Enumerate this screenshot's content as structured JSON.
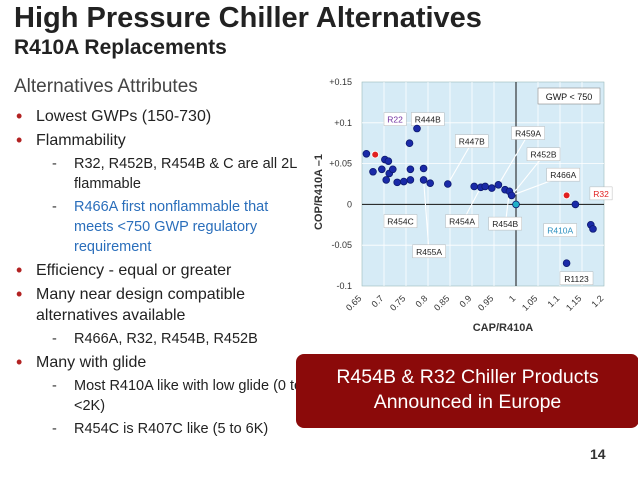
{
  "title": "High Pressure Chiller Alternatives",
  "subtitle": "R410A Replacements",
  "section_heading": "Alternatives Attributes",
  "bullets": [
    {
      "level": 1,
      "text": "Lowest GWPs (150-730)"
    },
    {
      "level": 1,
      "text": "Flammability"
    },
    {
      "level": 2,
      "text": "R32, R452B, R454B & C are all 2L flammable"
    },
    {
      "level": 2,
      "text": "R466A first nonflammable that meets <750 GWP regulatory requirement",
      "color": "#2a6ebb"
    },
    {
      "level": 1,
      "text": "Efficiency - equal or greater"
    },
    {
      "level": 1,
      "text": "Many near design compatible alternatives available"
    },
    {
      "level": 2,
      "text": "R466A, R32, R454B, R452B"
    },
    {
      "level": 1,
      "text": "Many with glide"
    },
    {
      "level": 2,
      "text": "Most R410A like with low glide (0 to <2K)"
    },
    {
      "level": 2,
      "text": "R454C is R407C like (5 to 6K)"
    }
  ],
  "callout": {
    "line1": "R454B & R32 Chiller Products",
    "line2": "Announced in Europe"
  },
  "page_number": "14",
  "colors": {
    "plot_bg": "#d6ebf6",
    "point": "#1a2aa8",
    "highlight_red": "#e02020",
    "bullet_red": "#b22222",
    "callout_bg": "#8b0a0a",
    "link_blue": "#2a6ebb"
  },
  "chart_data": {
    "type": "scatter",
    "xlabel": "CAP/R410A",
    "ylabel": "COP/R410A –1",
    "xlim": [
      0.65,
      1.2
    ],
    "ylim": [
      -0.1,
      0.15
    ],
    "x_ticks": [
      "0.65",
      "0.7",
      "0.75",
      "0.8",
      "0.85",
      "0.9",
      "0.95",
      "1",
      "1.05",
      "1.1",
      "1.15",
      "1.2"
    ],
    "y_ticks": [
      "+0.15",
      "+0.1",
      "+0.05",
      "0",
      "-0.05",
      "-0.1"
    ],
    "reference_lines": {
      "x": 1.0,
      "y": 0.0
    },
    "grid": true,
    "annotation_box": "GWP < 750",
    "points": [
      {
        "x": 0.66,
        "y": 0.062
      },
      {
        "x": 0.675,
        "y": 0.04
      },
      {
        "x": 0.68,
        "y": 0.061,
        "color": "red"
      },
      {
        "x": 0.695,
        "y": 0.043
      },
      {
        "x": 0.702,
        "y": 0.055
      },
      {
        "x": 0.705,
        "y": 0.03
      },
      {
        "x": 0.71,
        "y": 0.053
      },
      {
        "x": 0.712,
        "y": 0.038
      },
      {
        "x": 0.72,
        "y": 0.043
      },
      {
        "x": 0.73,
        "y": 0.027
      },
      {
        "x": 0.745,
        "y": 0.028
      },
      {
        "x": 0.758,
        "y": 0.075
      },
      {
        "x": 0.76,
        "y": 0.043
      },
      {
        "x": 0.76,
        "y": 0.03
      },
      {
        "x": 0.775,
        "y": 0.093
      },
      {
        "x": 0.79,
        "y": 0.044
      },
      {
        "x": 0.79,
        "y": 0.03
      },
      {
        "x": 0.805,
        "y": 0.026
      },
      {
        "x": 0.845,
        "y": 0.025
      },
      {
        "x": 0.905,
        "y": 0.022
      },
      {
        "x": 0.92,
        "y": 0.021
      },
      {
        "x": 0.93,
        "y": 0.022
      },
      {
        "x": 0.945,
        "y": 0.02
      },
      {
        "x": 0.96,
        "y": 0.024
      },
      {
        "x": 0.975,
        "y": 0.018
      },
      {
        "x": 0.985,
        "y": 0.016
      },
      {
        "x": 0.99,
        "y": 0.011
      },
      {
        "x": 1.0,
        "y": 0.0,
        "color": "teal"
      },
      {
        "x": 1.115,
        "y": 0.011,
        "color": "red"
      },
      {
        "x": 1.135,
        "y": 0.0
      },
      {
        "x": 1.17,
        "y": -0.025
      },
      {
        "x": 1.175,
        "y": -0.03
      },
      {
        "x": 1.115,
        "y": -0.072
      }
    ],
    "labels": [
      {
        "text": "R22",
        "x": 0.7,
        "y": 0.11,
        "color": "#7030a0"
      },
      {
        "text": "R444B",
        "x": 0.762,
        "y": 0.11
      },
      {
        "text": "R447B",
        "x": 0.862,
        "y": 0.083
      },
      {
        "text": "R459A",
        "x": 0.99,
        "y": 0.093
      },
      {
        "text": "R452B",
        "x": 1.025,
        "y": 0.067
      },
      {
        "text": "R466A",
        "x": 1.07,
        "y": 0.042
      },
      {
        "text": "R32",
        "x": 1.168,
        "y": 0.019,
        "color": "#e02020"
      },
      {
        "text": "R454C",
        "x": 0.7,
        "y": -0.015
      },
      {
        "text": "R454A",
        "x": 0.84,
        "y": -0.015
      },
      {
        "text": "R454B",
        "x": 0.938,
        "y": -0.018
      },
      {
        "text": "R410A",
        "x": 1.063,
        "y": -0.026,
        "color": "#2a8fbf"
      },
      {
        "text": "R455A",
        "x": 0.765,
        "y": -0.052
      },
      {
        "text": "R1123",
        "x": 1.1,
        "y": -0.085
      }
    ]
  }
}
